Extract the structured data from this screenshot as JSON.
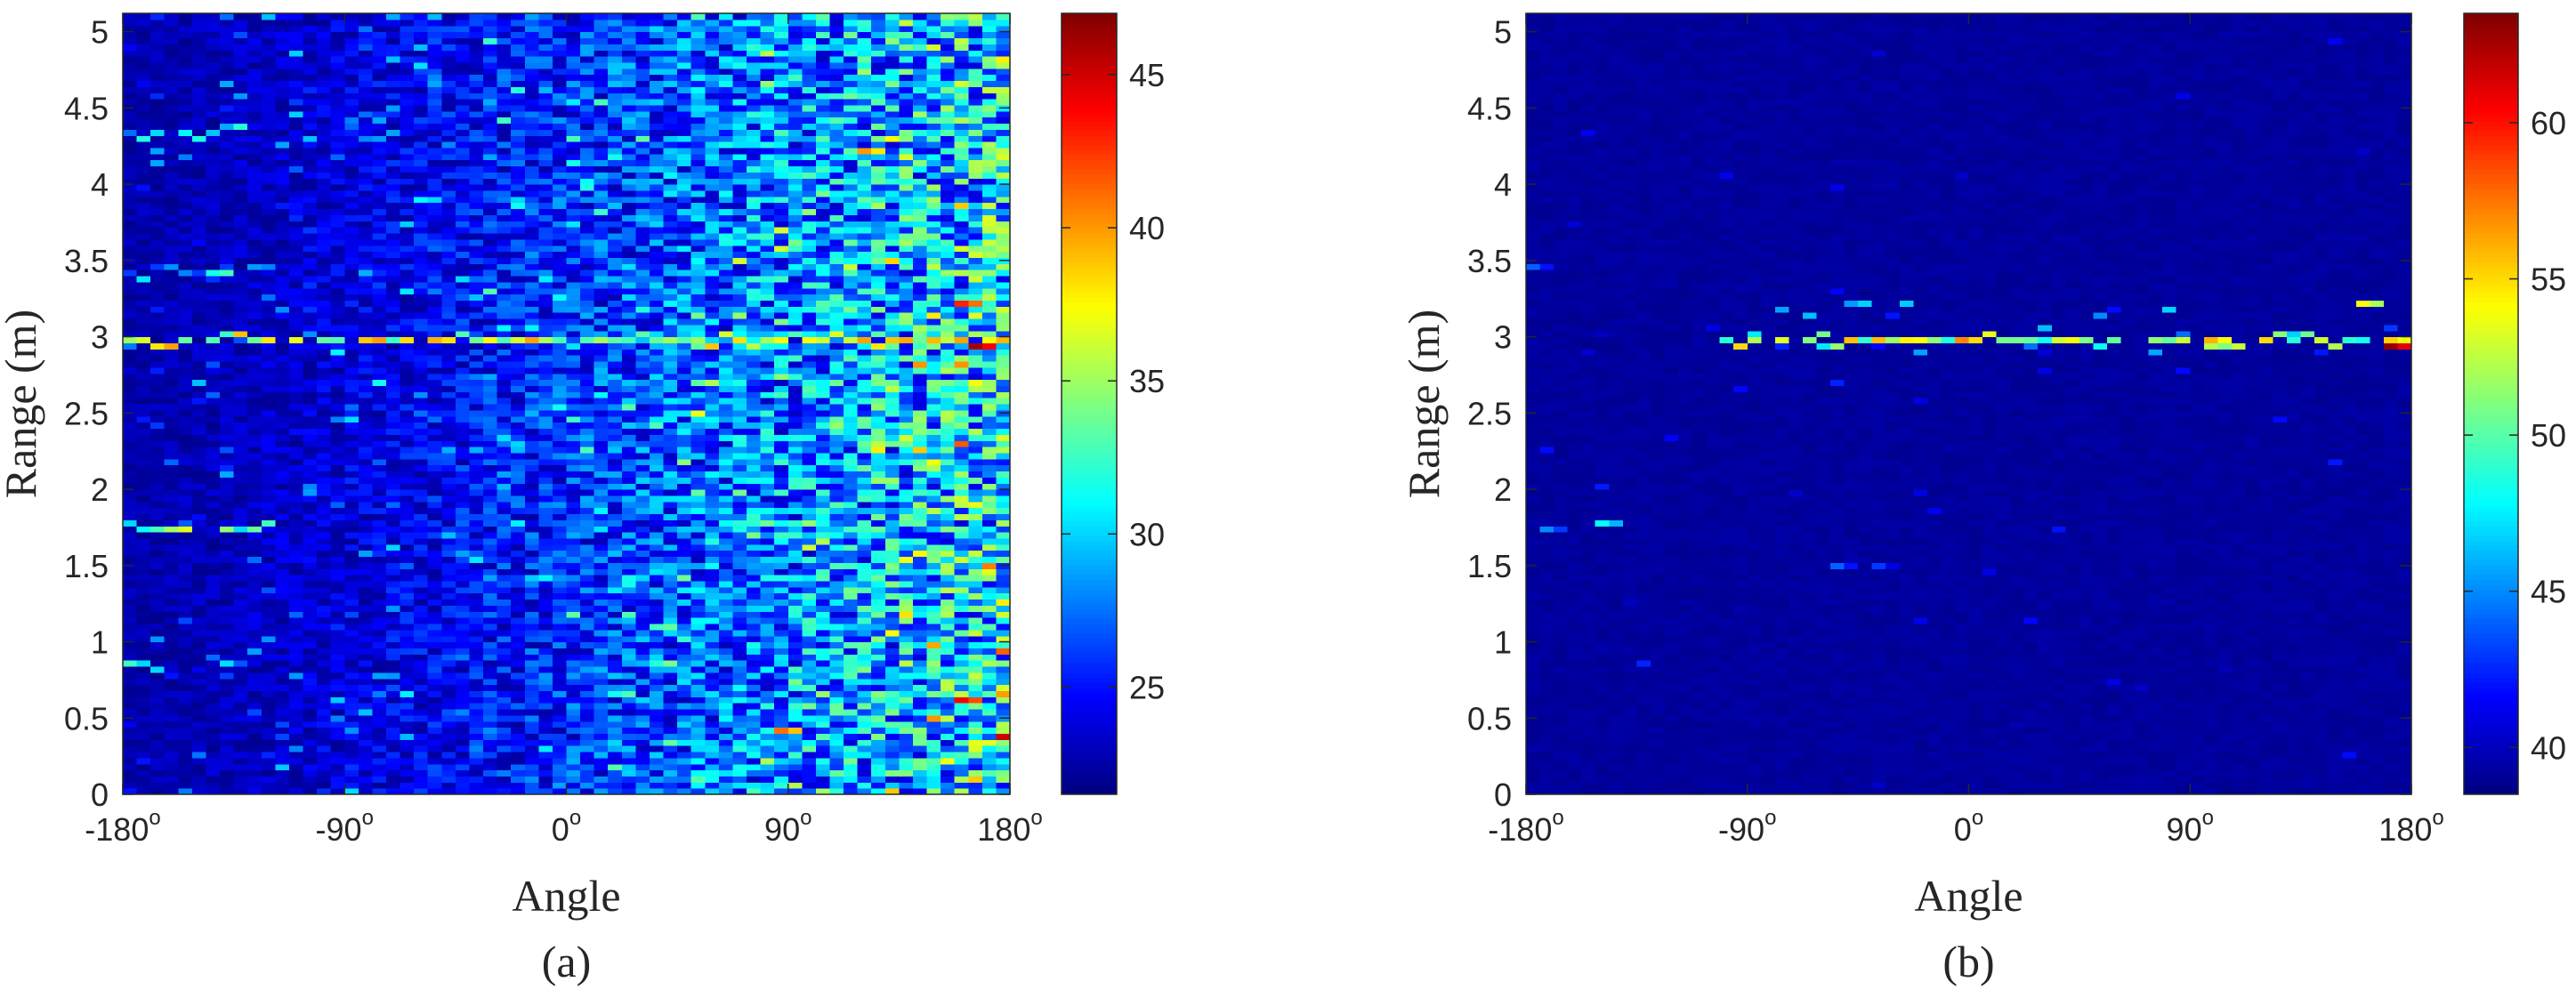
{
  "chart_data": [
    {
      "type": "heatmap",
      "panel_label": "(a)",
      "xlabel": "Angle",
      "ylabel": "Range (m)",
      "x_range_deg": [
        -180,
        180
      ],
      "y_range_m": [
        0,
        5.12
      ],
      "x_ticks": [
        {
          "value": -180,
          "label": "-180",
          "sup": "o"
        },
        {
          "value": -90,
          "label": "-90",
          "sup": "o"
        },
        {
          "value": 0,
          "label": "0",
          "sup": "o"
        },
        {
          "value": 90,
          "label": "90",
          "sup": "o"
        },
        {
          "value": 180,
          "label": "180",
          "sup": "o"
        }
      ],
      "y_ticks": [
        "0",
        "0.5",
        "1",
        "1.5",
        "2",
        "2.5",
        "3",
        "3.5",
        "4",
        "4.5",
        "5"
      ],
      "colorbar": {
        "colormap": "jet",
        "clim": [
          21.5,
          47
        ],
        "ticks": [
          "25",
          "30",
          "35",
          "40",
          "45"
        ]
      },
      "grid": {
        "angle_bins": 64,
        "range_bins": 128
      },
      "description": "Cluttered range-angle map; baseline ~22-28, rising strongly toward +180 deg; bright returns near 3 m",
      "features": [
        {
          "range_m": 2.98,
          "angle_from": -180,
          "angle_to": 180,
          "value": 36
        },
        {
          "range_m": 1.75,
          "angle_from": -180,
          "angle_to": -120,
          "value": 33
        },
        {
          "range_m": 3.43,
          "angle_from": -180,
          "angle_to": -120,
          "value": 30
        },
        {
          "range_m": 4.35,
          "angle_from": -180,
          "angle_to": -130,
          "value": 29
        },
        {
          "range_m": 0.85,
          "angle_from": -180,
          "angle_to": -130,
          "value": 29
        }
      ],
      "hotspots": [
        {
          "angle": 168,
          "range_m": 2.95,
          "value": 46
        },
        {
          "angle": 175,
          "range_m": 0.38,
          "value": 45
        },
        {
          "angle": 158,
          "range_m": 0.62,
          "value": 44
        },
        {
          "angle": 162,
          "range_m": 3.2,
          "value": 43
        },
        {
          "angle": 88,
          "range_m": 0.42,
          "value": 41
        },
        {
          "angle": 120,
          "range_m": 4.2,
          "value": 40
        }
      ]
    },
    {
      "type": "heatmap",
      "panel_label": "(b)",
      "xlabel": "Angle",
      "ylabel": "Range (m)",
      "x_range_deg": [
        -180,
        180
      ],
      "y_range_m": [
        0,
        5.12
      ],
      "x_ticks": [
        {
          "value": -180,
          "label": "-180",
          "sup": "o"
        },
        {
          "value": -90,
          "label": "-90",
          "sup": "o"
        },
        {
          "value": 0,
          "label": "0",
          "sup": "o"
        },
        {
          "value": 90,
          "label": "90",
          "sup": "o"
        },
        {
          "value": 180,
          "label": "180",
          "sup": "o"
        }
      ],
      "y_ticks": [
        "0",
        "0.5",
        "1",
        "1.5",
        "2",
        "2.5",
        "3",
        "3.5",
        "4",
        "4.5",
        "5"
      ],
      "colorbar": {
        "colormap": "jet",
        "clim": [
          38.5,
          63.5
        ],
        "ticks": [
          "40",
          "45",
          "50",
          "55",
          "60"
        ]
      },
      "grid": {
        "angle_bins": 64,
        "range_bins": 128
      },
      "description": "Mostly background (~39); strong target line at ~3 m from about -100 deg to +180 deg",
      "features": [
        {
          "range_m": 2.98,
          "angle_from": -100,
          "angle_to": 180,
          "value": 52
        }
      ],
      "hotspots": [
        {
          "angle": 172,
          "range_m": 2.95,
          "value": 63
        },
        {
          "angle": -5,
          "range_m": 2.98,
          "value": 57
        },
        {
          "angle": 100,
          "range_m": 2.98,
          "value": 56
        },
        {
          "angle": 160,
          "range_m": 3.2,
          "value": 54
        },
        {
          "angle": -148,
          "range_m": 1.78,
          "value": 48
        },
        {
          "angle": -170,
          "range_m": 1.75,
          "value": 45
        },
        {
          "angle": -55,
          "range_m": 1.5,
          "value": 44
        },
        {
          "angle": -35,
          "range_m": 1.5,
          "value": 43
        },
        {
          "angle": -178,
          "range_m": 3.45,
          "value": 44
        }
      ]
    }
  ]
}
